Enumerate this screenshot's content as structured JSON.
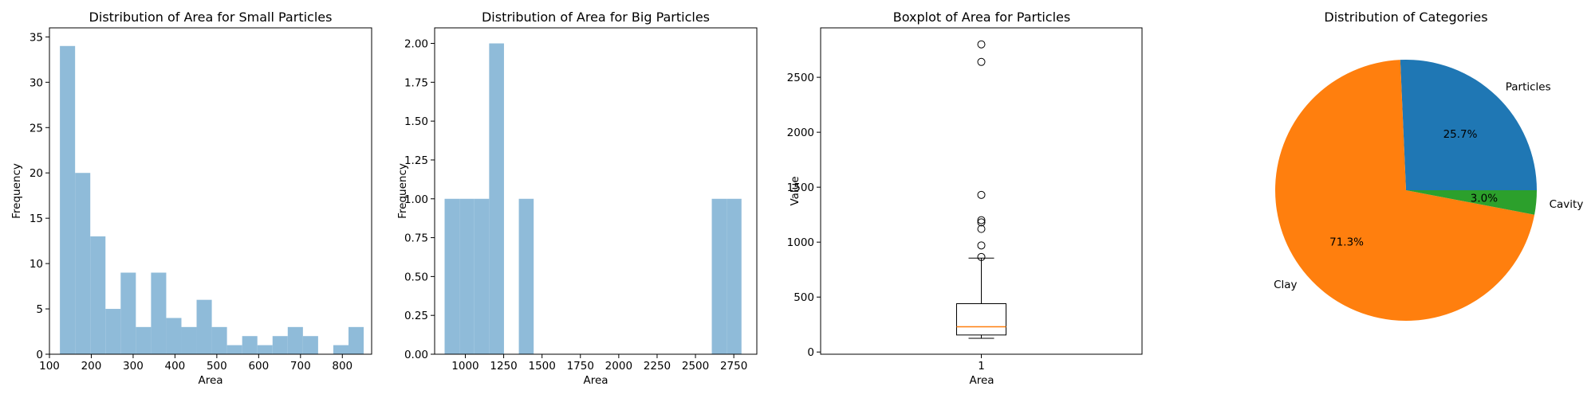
{
  "chart_data": [
    {
      "type": "bar",
      "title": "Distribution of Area for Small Particles",
      "xlabel": "Area",
      "ylabel": "Frequency",
      "xlim": [
        100,
        870
      ],
      "ylim": [
        0,
        36
      ],
      "xticks": [
        100,
        200,
        300,
        400,
        500,
        600,
        700,
        800
      ],
      "yticks": [
        0,
        5,
        10,
        15,
        20,
        25,
        30,
        35
      ],
      "bin_edges": [
        125,
        161.3,
        197.6,
        233.9,
        270.2,
        306.5,
        342.8,
        379.1,
        415.4,
        451.7,
        488,
        524.3,
        560.6,
        596.9,
        633.2,
        669.5,
        705.8,
        742.1,
        778.4,
        814.7,
        851
      ],
      "values": [
        34,
        20,
        13,
        5,
        9,
        3,
        9,
        4,
        3,
        6,
        3,
        1,
        2,
        1,
        2,
        3,
        2,
        0,
        1,
        3
      ],
      "color": "#8fbbd9"
    },
    {
      "type": "bar",
      "title": "Distribution of Area for Big Particles",
      "xlabel": "Area",
      "ylabel": "Frequency",
      "xlim": [
        800,
        2900
      ],
      "ylim": [
        0,
        2.1
      ],
      "xticks": [
        1000,
        1250,
        1500,
        1750,
        2000,
        2250,
        2500,
        2750
      ],
      "yticks": [
        "0.00",
        "0.25",
        "0.50",
        "0.75",
        "1.00",
        "1.25",
        "1.50",
        "1.75",
        "2.00"
      ],
      "bin_edges": [
        865,
        961.75,
        1058.5,
        1155.25,
        1252,
        1348.75,
        1445.5,
        1542.25,
        1639,
        1735.75,
        1832.5,
        1929.25,
        2026,
        2122.75,
        2219.5,
        2316.25,
        2413,
        2509.75,
        2606.5,
        2703.25,
        2800
      ],
      "values": [
        1,
        1,
        1,
        2,
        0,
        1,
        0,
        0,
        0,
        0,
        0,
        0,
        0,
        0,
        0,
        0,
        0,
        0,
        1,
        1
      ],
      "color": "#8fbbd9"
    },
    {
      "type": "boxplot",
      "title": "Boxplot of Area for Particles",
      "xlabel": "Area",
      "ylabel": "Value",
      "ylim": [
        -20,
        2950
      ],
      "yticks": [
        0,
        500,
        1000,
        1500,
        2000,
        2500
      ],
      "xticks": [
        "1"
      ],
      "box": {
        "whisker_low": 125,
        "q1": 155,
        "median": 230,
        "q3": 440,
        "whisker_high": 855
      },
      "outliers": [
        865,
        970,
        1120,
        1180,
        1200,
        1430,
        2640,
        2800
      ],
      "median_color": "#ff7f0e"
    },
    {
      "type": "pie",
      "title": "Distribution of Categories",
      "labels": [
        "Particles",
        "Clay",
        "Cavity"
      ],
      "values": [
        25.7,
        71.3,
        3.0
      ],
      "autopct": [
        "25.7%",
        "71.3%",
        "3.0%"
      ],
      "colors": [
        "#1f77b4",
        "#ff7f0e",
        "#2ca02c"
      ]
    }
  ]
}
